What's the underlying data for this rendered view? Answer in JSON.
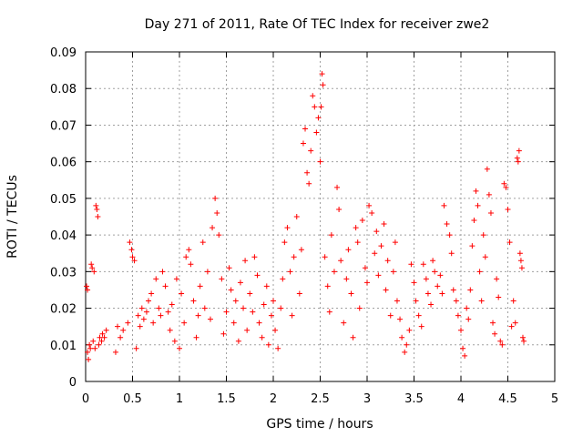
{
  "chart_data": {
    "type": "scatter",
    "title": "Day 271 of 2011, Rate Of TEC Index for receiver zwe2",
    "xlabel": "GPS time / hours",
    "ylabel": "ROTI / TECUs",
    "xlim": [
      0,
      5
    ],
    "ylim": [
      0,
      0.09
    ],
    "grid": true,
    "legend": "none",
    "marker": "plus",
    "color": "#ff0000",
    "x_ticks": [
      "0",
      "0.5",
      "1",
      "1.5",
      "2",
      "2.5",
      "3",
      "3.5",
      "4",
      "4.5",
      "5"
    ],
    "y_ticks": [
      "0",
      "0.01",
      "0.02",
      "0.03",
      "0.04",
      "0.05",
      "0.06",
      "0.07",
      "0.08",
      "0.09"
    ],
    "series": [
      {
        "name": "ROTI",
        "points": [
          [
            0.01,
            0.026
          ],
          [
            0.02,
            0.025
          ],
          [
            0.02,
            0.008
          ],
          [
            0.03,
            0.006
          ],
          [
            0.04,
            0.01
          ],
          [
            0.05,
            0.009
          ],
          [
            0.06,
            0.032
          ],
          [
            0.07,
            0.031
          ],
          [
            0.08,
            0.011
          ],
          [
            0.09,
            0.03
          ],
          [
            0.1,
            0.009
          ],
          [
            0.11,
            0.048
          ],
          [
            0.12,
            0.047
          ],
          [
            0.13,
            0.045
          ],
          [
            0.14,
            0.01
          ],
          [
            0.15,
            0.012
          ],
          [
            0.17,
            0.011
          ],
          [
            0.18,
            0.013
          ],
          [
            0.2,
            0.012
          ],
          [
            0.22,
            0.014
          ],
          [
            0.32,
            0.008
          ],
          [
            0.34,
            0.015
          ],
          [
            0.37,
            0.012
          ],
          [
            0.4,
            0.014
          ],
          [
            0.45,
            0.016
          ],
          [
            0.47,
            0.038
          ],
          [
            0.49,
            0.036
          ],
          [
            0.5,
            0.034
          ],
          [
            0.52,
            0.033
          ],
          [
            0.54,
            0.009
          ],
          [
            0.56,
            0.018
          ],
          [
            0.58,
            0.015
          ],
          [
            0.6,
            0.02
          ],
          [
            0.62,
            0.017
          ],
          [
            0.65,
            0.019
          ],
          [
            0.67,
            0.022
          ],
          [
            0.7,
            0.024
          ],
          [
            0.72,
            0.016
          ],
          [
            0.75,
            0.028
          ],
          [
            0.78,
            0.02
          ],
          [
            0.8,
            0.018
          ],
          [
            0.82,
            0.03
          ],
          [
            0.85,
            0.026
          ],
          [
            0.88,
            0.019
          ],
          [
            0.9,
            0.014
          ],
          [
            0.92,
            0.021
          ],
          [
            0.95,
            0.011
          ],
          [
            0.97,
            0.028
          ],
          [
            1.0,
            0.009
          ],
          [
            1.02,
            0.024
          ],
          [
            1.05,
            0.016
          ],
          [
            1.07,
            0.034
          ],
          [
            1.1,
            0.036
          ],
          [
            1.12,
            0.032
          ],
          [
            1.15,
            0.022
          ],
          [
            1.18,
            0.012
          ],
          [
            1.2,
            0.018
          ],
          [
            1.22,
            0.026
          ],
          [
            1.25,
            0.038
          ],
          [
            1.27,
            0.02
          ],
          [
            1.3,
            0.03
          ],
          [
            1.33,
            0.017
          ],
          [
            1.35,
            0.042
          ],
          [
            1.38,
            0.05
          ],
          [
            1.4,
            0.046
          ],
          [
            1.42,
            0.04
          ],
          [
            1.45,
            0.028
          ],
          [
            1.47,
            0.013
          ],
          [
            1.5,
            0.019
          ],
          [
            1.53,
            0.031
          ],
          [
            1.55,
            0.025
          ],
          [
            1.58,
            0.016
          ],
          [
            1.6,
            0.022
          ],
          [
            1.63,
            0.011
          ],
          [
            1.65,
            0.027
          ],
          [
            1.68,
            0.02
          ],
          [
            1.7,
            0.033
          ],
          [
            1.72,
            0.014
          ],
          [
            1.75,
            0.024
          ],
          [
            1.78,
            0.019
          ],
          [
            1.8,
            0.034
          ],
          [
            1.83,
            0.029
          ],
          [
            1.85,
            0.016
          ],
          [
            1.88,
            0.012
          ],
          [
            1.9,
            0.021
          ],
          [
            1.93,
            0.026
          ],
          [
            1.95,
            0.01
          ],
          [
            1.98,
            0.018
          ],
          [
            2.0,
            0.022
          ],
          [
            2.02,
            0.014
          ],
          [
            2.05,
            0.009
          ],
          [
            2.08,
            0.02
          ],
          [
            2.1,
            0.028
          ],
          [
            2.12,
            0.038
          ],
          [
            2.15,
            0.042
          ],
          [
            2.18,
            0.03
          ],
          [
            2.2,
            0.018
          ],
          [
            2.22,
            0.034
          ],
          [
            2.25,
            0.045
          ],
          [
            2.28,
            0.024
          ],
          [
            2.3,
            0.036
          ],
          [
            2.32,
            0.065
          ],
          [
            2.34,
            0.069
          ],
          [
            2.36,
            0.057
          ],
          [
            2.38,
            0.054
          ],
          [
            2.4,
            0.063
          ],
          [
            2.42,
            0.078
          ],
          [
            2.44,
            0.075
          ],
          [
            2.46,
            0.068
          ],
          [
            2.48,
            0.072
          ],
          [
            2.5,
            0.06
          ],
          [
            2.51,
            0.075
          ],
          [
            2.52,
            0.084
          ],
          [
            2.53,
            0.081
          ],
          [
            2.55,
            0.034
          ],
          [
            2.58,
            0.026
          ],
          [
            2.6,
            0.019
          ],
          [
            2.62,
            0.04
          ],
          [
            2.65,
            0.03
          ],
          [
            2.68,
            0.053
          ],
          [
            2.7,
            0.047
          ],
          [
            2.72,
            0.033
          ],
          [
            2.75,
            0.016
          ],
          [
            2.78,
            0.028
          ],
          [
            2.8,
            0.036
          ],
          [
            2.83,
            0.024
          ],
          [
            2.85,
            0.012
          ],
          [
            2.88,
            0.042
          ],
          [
            2.9,
            0.038
          ],
          [
            2.92,
            0.02
          ],
          [
            2.95,
            0.044
          ],
          [
            2.98,
            0.031
          ],
          [
            3.0,
            0.027
          ],
          [
            3.02,
            0.048
          ],
          [
            3.05,
            0.046
          ],
          [
            3.08,
            0.035
          ],
          [
            3.1,
            0.041
          ],
          [
            3.12,
            0.029
          ],
          [
            3.15,
            0.037
          ],
          [
            3.18,
            0.043
          ],
          [
            3.2,
            0.025
          ],
          [
            3.22,
            0.033
          ],
          [
            3.25,
            0.018
          ],
          [
            3.28,
            0.03
          ],
          [
            3.3,
            0.038
          ],
          [
            3.32,
            0.022
          ],
          [
            3.35,
            0.017
          ],
          [
            3.37,
            0.012
          ],
          [
            3.4,
            0.008
          ],
          [
            3.42,
            0.01
          ],
          [
            3.45,
            0.014
          ],
          [
            3.47,
            0.032
          ],
          [
            3.5,
            0.027
          ],
          [
            3.52,
            0.022
          ],
          [
            3.55,
            0.018
          ],
          [
            3.58,
            0.015
          ],
          [
            3.6,
            0.032
          ],
          [
            3.63,
            0.028
          ],
          [
            3.65,
            0.024
          ],
          [
            3.68,
            0.021
          ],
          [
            3.7,
            0.033
          ],
          [
            3.72,
            0.03
          ],
          [
            3.75,
            0.026
          ],
          [
            3.78,
            0.029
          ],
          [
            3.8,
            0.024
          ],
          [
            3.82,
            0.048
          ],
          [
            3.85,
            0.043
          ],
          [
            3.88,
            0.04
          ],
          [
            3.9,
            0.035
          ],
          [
            3.92,
            0.025
          ],
          [
            3.95,
            0.022
          ],
          [
            3.97,
            0.018
          ],
          [
            4.0,
            0.014
          ],
          [
            4.02,
            0.009
          ],
          [
            4.04,
            0.007
          ],
          [
            4.06,
            0.02
          ],
          [
            4.08,
            0.017
          ],
          [
            4.1,
            0.025
          ],
          [
            4.12,
            0.037
          ],
          [
            4.14,
            0.044
          ],
          [
            4.16,
            0.052
          ],
          [
            4.18,
            0.048
          ],
          [
            4.2,
            0.03
          ],
          [
            4.22,
            0.022
          ],
          [
            4.24,
            0.04
          ],
          [
            4.26,
            0.034
          ],
          [
            4.28,
            0.058
          ],
          [
            4.3,
            0.051
          ],
          [
            4.32,
            0.046
          ],
          [
            4.34,
            0.016
          ],
          [
            4.36,
            0.013
          ],
          [
            4.38,
            0.028
          ],
          [
            4.4,
            0.023
          ],
          [
            4.42,
            0.011
          ],
          [
            4.44,
            0.01
          ],
          [
            4.46,
            0.054
          ],
          [
            4.48,
            0.053
          ],
          [
            4.5,
            0.047
          ],
          [
            4.52,
            0.038
          ],
          [
            4.54,
            0.015
          ],
          [
            4.56,
            0.022
          ],
          [
            4.58,
            0.016
          ],
          [
            4.6,
            0.061
          ],
          [
            4.61,
            0.06
          ],
          [
            4.62,
            0.063
          ],
          [
            4.63,
            0.035
          ],
          [
            4.64,
            0.033
          ],
          [
            4.65,
            0.031
          ],
          [
            4.66,
            0.012
          ],
          [
            4.67,
            0.011
          ]
        ]
      }
    ]
  }
}
